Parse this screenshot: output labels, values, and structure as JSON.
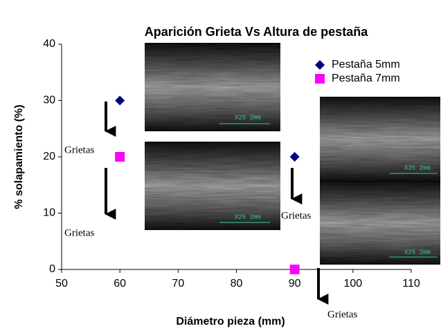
{
  "chart_data": {
    "type": "scatter",
    "title": "Aparición Grieta Vs Altura de pestaña",
    "x_label": "Diámetro pieza (mm)",
    "y_label": "% solapamiento (%)",
    "series": [
      {
        "name": "Pestaña 5mm",
        "color": "#000080",
        "marker": "diamond",
        "x": [
          60,
          90
        ],
        "values": [
          30,
          20
        ]
      },
      {
        "name": "Pestaña 7mm",
        "color": "#ff00ff",
        "marker": "square",
        "x": [
          60,
          90
        ],
        "values": [
          20,
          0
        ]
      }
    ],
    "xlim": [
      50,
      110
    ],
    "xticks": [
      50,
      60,
      70,
      80,
      90,
      100,
      110
    ],
    "ylim": [
      0,
      40
    ],
    "yticks": [
      0,
      10,
      20,
      30,
      40
    ],
    "grid": false,
    "legend": "upper right",
    "annotations": [
      "Grietas",
      "Grietas",
      "Grietas",
      "Grietas"
    ],
    "image_captions": [
      "X25 2mm",
      "X25 2mm",
      "X25 2mm",
      "X25 2mm"
    ]
  }
}
